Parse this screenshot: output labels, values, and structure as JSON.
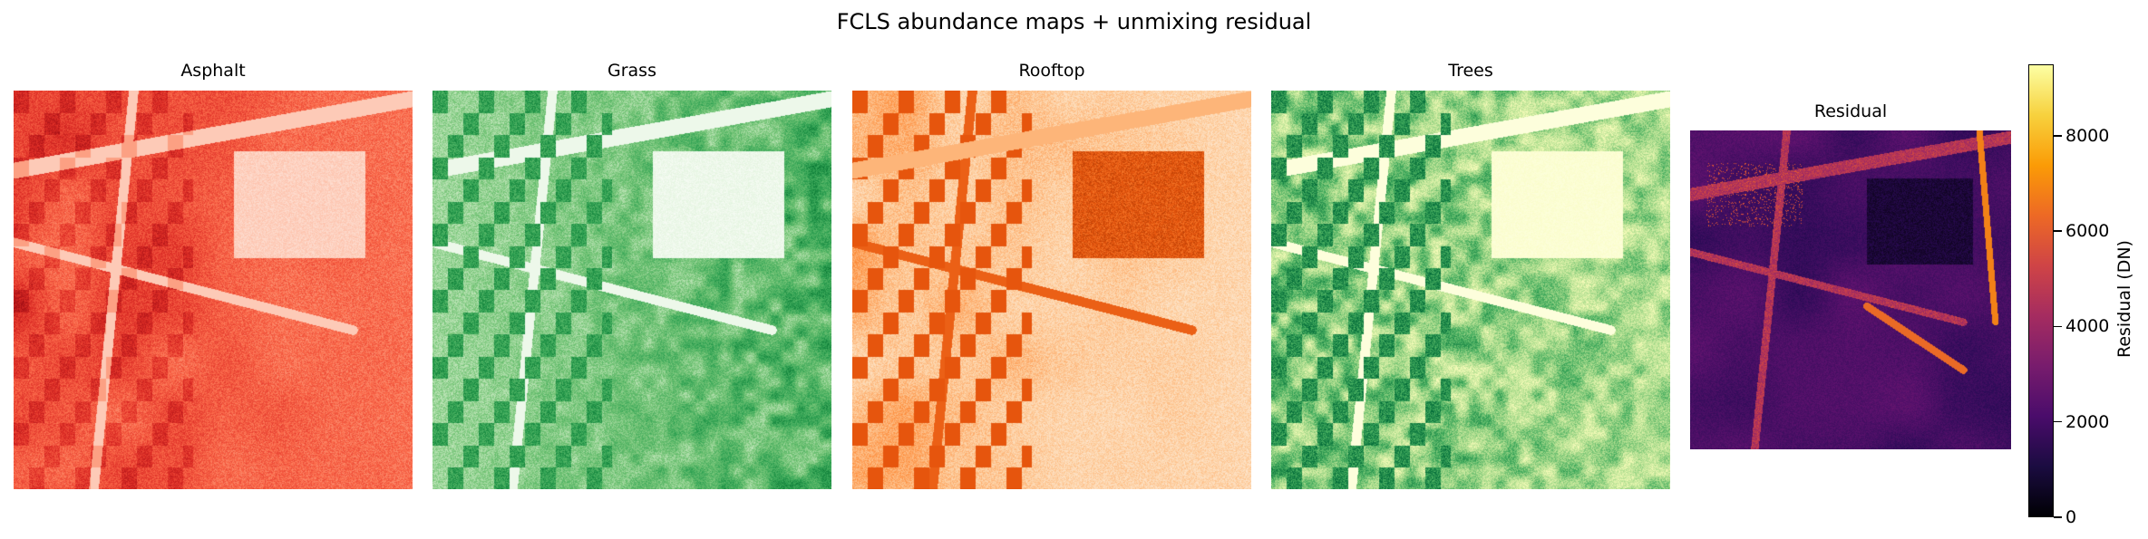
{
  "figure": {
    "title": "FCLS abundance maps + unmixing residual"
  },
  "chart_data": {
    "type": "heatmap",
    "title": "FCLS abundance maps + unmixing residual",
    "panels": [
      {
        "title": "Asphalt",
        "colormap": "Reds"
      },
      {
        "title": "Grass",
        "colormap": "Greens"
      },
      {
        "title": "Rooftop",
        "colormap": "Oranges"
      },
      {
        "title": "Trees",
        "colormap": "YlGn"
      },
      {
        "title": "Residual",
        "colormap": "inferno"
      }
    ],
    "colorbar": {
      "label": "Residual (DN)",
      "range": [
        0,
        9500
      ],
      "ticks": [
        0,
        2000,
        4000,
        6000,
        8000
      ]
    },
    "colors": {
      "Asphalt": [
        "#fff5f0",
        "#fcae91",
        "#fb6a4a",
        "#de2d26",
        "#a50f15"
      ],
      "Grass": [
        "#f7fcf5",
        "#c7e9c0",
        "#74c476",
        "#31a354",
        "#006d2c"
      ],
      "Rooftop": [
        "#fff5eb",
        "#fdd0a2",
        "#fd8d3c",
        "#e6550d",
        "#a63603"
      ],
      "Trees": [
        "#ffffe5",
        "#f7fcb9",
        "#addd8e",
        "#41ab5d",
        "#006837"
      ],
      "Residual": [
        "#000004",
        "#2c0b57",
        "#5d126e",
        "#8e2469",
        "#bc3754",
        "#e45a31",
        "#fb9b06",
        "#fcffa4"
      ]
    }
  }
}
